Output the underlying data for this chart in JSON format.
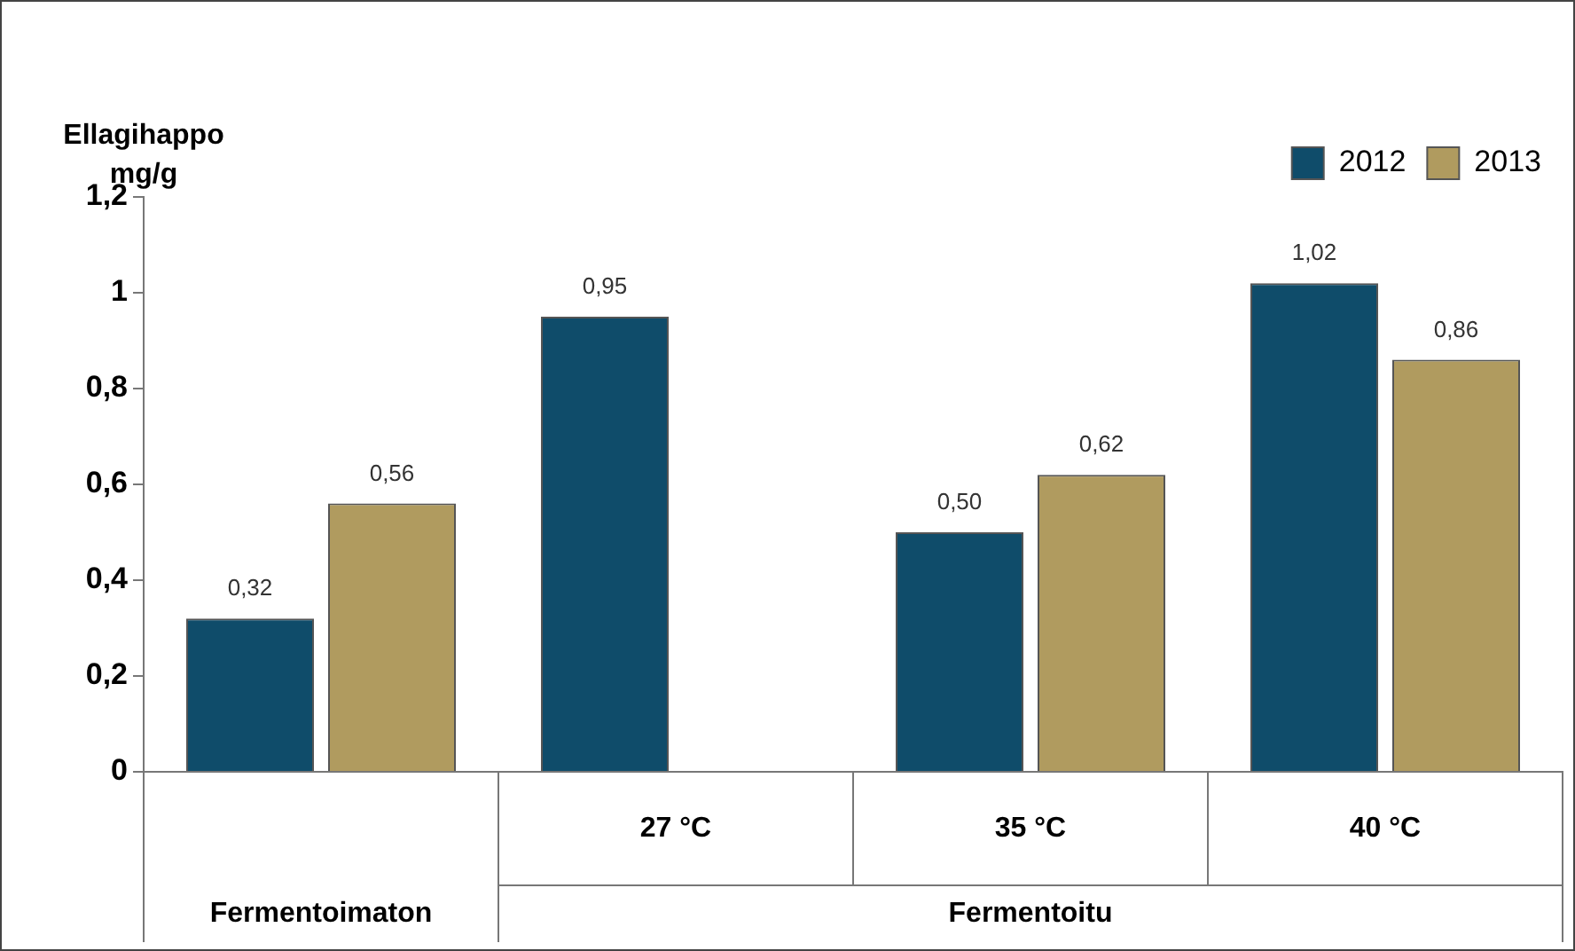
{
  "chart_data": {
    "type": "bar",
    "ylabel": "Ellagihappo\nmg/g",
    "categories": [
      null,
      "27 °C",
      "35 °C",
      "40 °C"
    ],
    "annotations": [
      "Fermentoimaton",
      "Fermentoitu"
    ],
    "series": [
      {
        "name": "2012",
        "color": "#0f4c6a",
        "values": [
          0.32,
          0.95,
          0.5,
          1.02
        ],
        "value_labels": [
          "0,32",
          "0,95",
          "0,50",
          "1,02"
        ]
      },
      {
        "name": "2013",
        "color": "#b09b5f",
        "values": [
          0.56,
          null,
          0.62,
          0.86
        ],
        "value_labels": [
          "0,56",
          null,
          "0,62",
          "0,86"
        ]
      }
    ],
    "ylim": [
      0,
      1.2
    ],
    "yticks": [
      0,
      {
        "value": 0.2,
        "label": "0,2"
      },
      {
        "value": 0.4,
        "label": "0,4"
      },
      {
        "value": 0.6,
        "label": "0,6"
      },
      {
        "value": 0.8,
        "label": "0,8"
      },
      1,
      {
        "value": 1.2,
        "label": "1,2"
      }
    ],
    "legend": "top right"
  }
}
